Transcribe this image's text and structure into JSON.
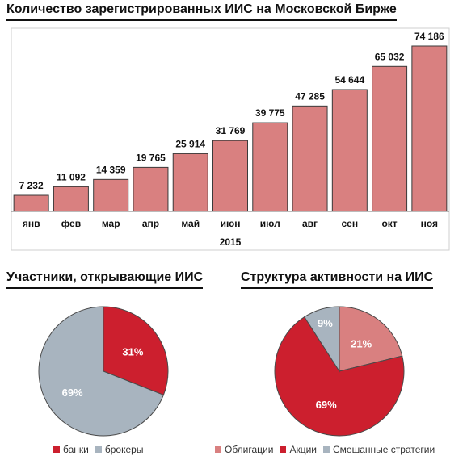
{
  "chart_data": [
    {
      "type": "bar",
      "title": "Количество зарегистрированных ИИС на Московской Бирже",
      "categories": [
        "янв",
        "фев",
        "мар",
        "апр",
        "май",
        "июн",
        "июл",
        "авг",
        "сен",
        "окт",
        "ноя"
      ],
      "values": [
        7232,
        11092,
        14359,
        19765,
        25914,
        31769,
        39775,
        47285,
        54644,
        65032,
        74186
      ],
      "value_labels": [
        "7 232",
        "11 092",
        "14 359",
        "19 765",
        "25 914",
        "31 769",
        "39 775",
        "47 285",
        "54 644",
        "65 032",
        "74 186"
      ],
      "xlabel": "2015",
      "ylabel": "",
      "ylim": [
        0,
        74186
      ],
      "color": "#d98080",
      "grid": false
    },
    {
      "type": "pie",
      "title": "Участники, открывающие ИИС",
      "labels": [
        "банки",
        "брокеры"
      ],
      "values": [
        31,
        69
      ],
      "value_labels": [
        "31%",
        "69%"
      ],
      "colors": [
        "#cc1f2e",
        "#a8b4bf"
      ],
      "legend": "bottom"
    },
    {
      "type": "pie",
      "title": "Структура активности на ИИС",
      "labels": [
        "Облигации",
        "Акции",
        "Смешанные стратегии"
      ],
      "values": [
        21,
        69,
        9
      ],
      "value_labels": [
        "21%",
        "69%",
        "9%"
      ],
      "colors": [
        "#d98080",
        "#cc1f2e",
        "#a8b4bf"
      ],
      "legend": "bottom"
    }
  ]
}
